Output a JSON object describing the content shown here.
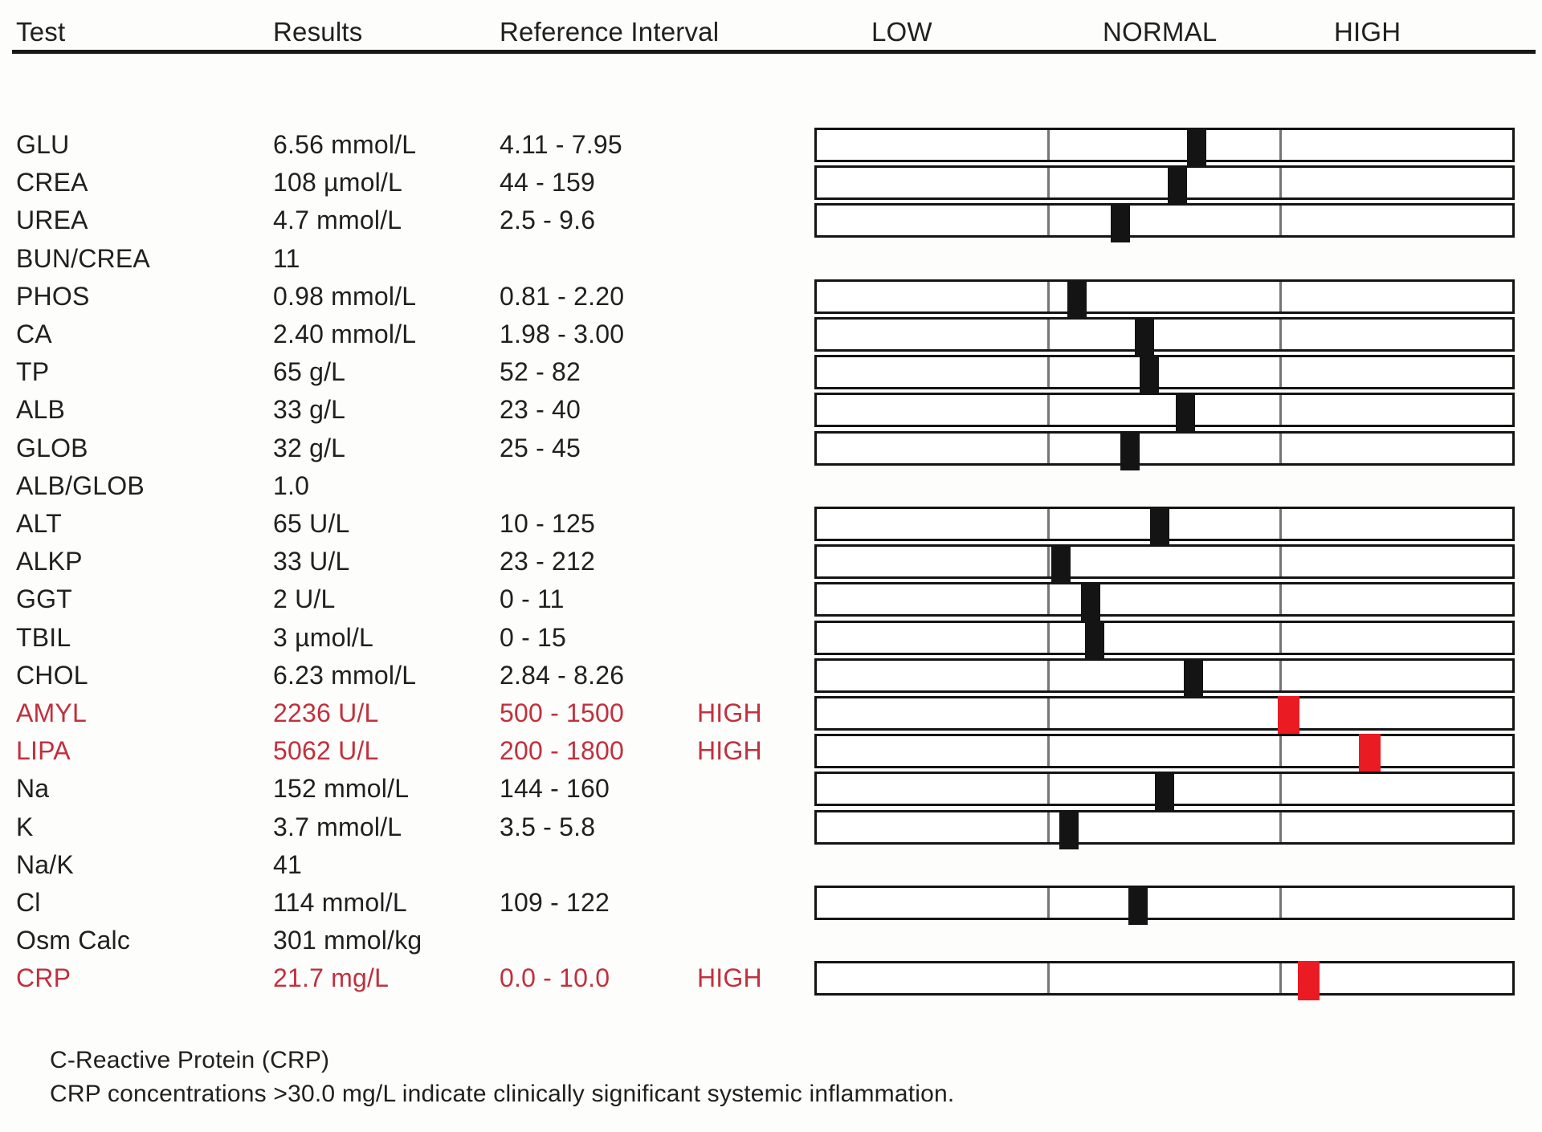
{
  "header": {
    "test": "Test",
    "results": "Results",
    "reference_interval": "Reference Interval",
    "low": "LOW",
    "normal": "NORMAL",
    "high": "HIGH"
  },
  "chart_data": {
    "type": "table",
    "gauge_zones": [
      "LOW",
      "NORMAL",
      "HIGH"
    ],
    "gauge_zone_fractions": [
      0.3333,
      0.3333,
      0.3334
    ],
    "rows": [
      {
        "test": "GLU",
        "result": "6.56 mmol/L",
        "ref": "4.11 - 7.95",
        "value": 6.56,
        "lo": 4.11,
        "hi": 7.95,
        "flag": null
      },
      {
        "test": "CREA",
        "result": "108 µmol/L",
        "ref": "44 - 159",
        "value": 108,
        "lo": 44,
        "hi": 159,
        "flag": null
      },
      {
        "test": "UREA",
        "result": "4.7 mmol/L",
        "ref": "2.5 - 9.6",
        "value": 4.7,
        "lo": 2.5,
        "hi": 9.6,
        "flag": null
      },
      {
        "test": "BUN/CREA",
        "result": "11",
        "ref": "",
        "value": 11,
        "lo": null,
        "hi": null,
        "flag": null
      },
      {
        "test": "PHOS",
        "result": "0.98 mmol/L",
        "ref": "0.81 - 2.20",
        "value": 0.98,
        "lo": 0.81,
        "hi": 2.2,
        "flag": null
      },
      {
        "test": "CA",
        "result": "2.40 mmol/L",
        "ref": "1.98 - 3.00",
        "value": 2.4,
        "lo": 1.98,
        "hi": 3.0,
        "flag": null
      },
      {
        "test": "TP",
        "result": "65 g/L",
        "ref": "52 - 82",
        "value": 65,
        "lo": 52,
        "hi": 82,
        "flag": null
      },
      {
        "test": "ALB",
        "result": "33 g/L",
        "ref": "23 - 40",
        "value": 33,
        "lo": 23,
        "hi": 40,
        "flag": null
      },
      {
        "test": "GLOB",
        "result": "32 g/L",
        "ref": "25 - 45",
        "value": 32,
        "lo": 25,
        "hi": 45,
        "flag": null
      },
      {
        "test": "ALB/GLOB",
        "result": "1.0",
        "ref": "",
        "value": 1.0,
        "lo": null,
        "hi": null,
        "flag": null
      },
      {
        "test": "ALT",
        "result": "65 U/L",
        "ref": "10 - 125",
        "value": 65,
        "lo": 10,
        "hi": 125,
        "flag": null
      },
      {
        "test": "ALKP",
        "result": "33 U/L",
        "ref": "23 - 212",
        "value": 33,
        "lo": 23,
        "hi": 212,
        "flag": null
      },
      {
        "test": "GGT",
        "result": "2 U/L",
        "ref": "0 - 11",
        "value": 2,
        "lo": 0,
        "hi": 11,
        "flag": null
      },
      {
        "test": "TBIL",
        "result": "3 µmol/L",
        "ref": "0 - 15",
        "value": 3,
        "lo": 0,
        "hi": 15,
        "flag": null
      },
      {
        "test": "CHOL",
        "result": "6.23 mmol/L",
        "ref": "2.84 - 8.26",
        "value": 6.23,
        "lo": 2.84,
        "hi": 8.26,
        "flag": null
      },
      {
        "test": "AMYL",
        "result": "2236 U/L",
        "ref": "500 - 1500",
        "value": 2236,
        "lo": 500,
        "hi": 1500,
        "flag": "HIGH",
        "marker_frac": 0.678
      },
      {
        "test": "LIPA",
        "result": "5062 U/L",
        "ref": "200 - 1800",
        "value": 5062,
        "lo": 200,
        "hi": 1800,
        "flag": "HIGH",
        "marker_frac": 0.795
      },
      {
        "test": "Na",
        "result": "152 mmol/L",
        "ref": "144 - 160",
        "value": 152,
        "lo": 144,
        "hi": 160,
        "flag": null
      },
      {
        "test": "K",
        "result": "3.7 mmol/L",
        "ref": "3.5 - 5.8",
        "value": 3.7,
        "lo": 3.5,
        "hi": 5.8,
        "flag": null
      },
      {
        "test": "Na/K",
        "result": "41",
        "ref": "",
        "value": 41,
        "lo": null,
        "hi": null,
        "flag": null
      },
      {
        "test": "Cl",
        "result": "114 mmol/L",
        "ref": "109 - 122",
        "value": 114,
        "lo": 109,
        "hi": 122,
        "flag": null
      },
      {
        "test": "Osm Calc",
        "result": "301 mmol/kg",
        "ref": "",
        "value": 301,
        "lo": null,
        "hi": null,
        "flag": null
      },
      {
        "test": "CRP",
        "result": "21.7 mg/L",
        "ref": "0.0 - 10.0",
        "value": 21.7,
        "lo": 0.0,
        "hi": 10.0,
        "flag": "HIGH",
        "marker_frac": 0.707
      }
    ]
  },
  "footer": {
    "note_title": "C-Reactive Protein (CRP)",
    "note_body": "CRP concentrations >30.0 mg/L indicate clinically significant systemic inflammation."
  },
  "colors": {
    "text": "#202020",
    "abnormal_text": "#c1303d",
    "marker_normal": "#141414",
    "marker_high": "#ea1b23",
    "gauge_border": "#141414",
    "zone_divider": "#757575",
    "header_rule": "#181818",
    "background": "#fdfdfc"
  }
}
